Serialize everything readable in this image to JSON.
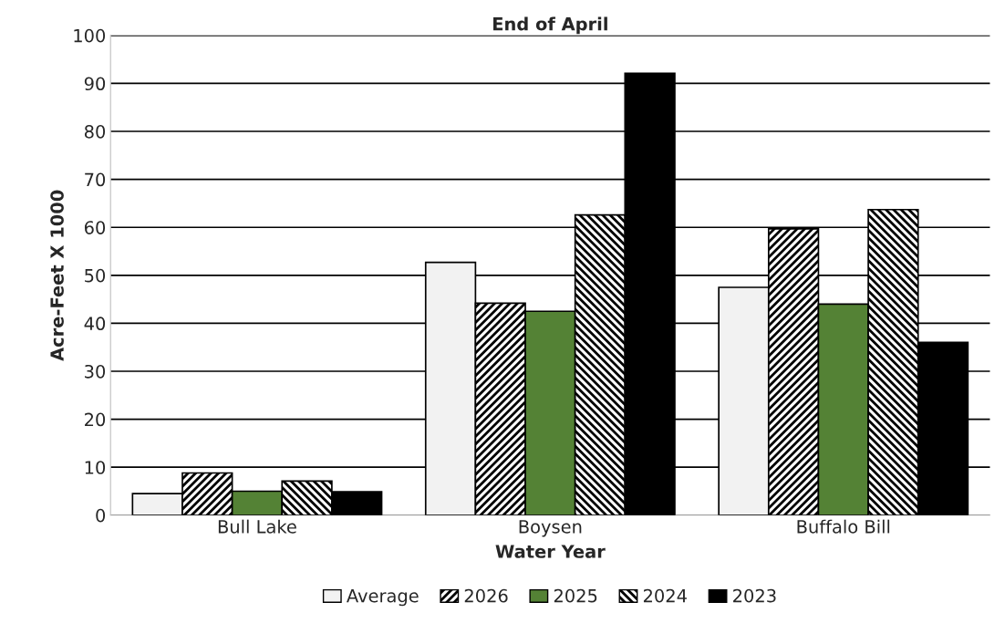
{
  "chart_data": {
    "type": "bar",
    "title": "End of April",
    "xlabel": "Water Year",
    "ylabel": "Acre-Feet X 1000",
    "categories": [
      "Bull Lake",
      "Boysen",
      "Buffalo Bill"
    ],
    "series": [
      {
        "name": "Average",
        "color": "#f2f2f2",
        "values": [
          4.5,
          52.7,
          47.5
        ]
      },
      {
        "name": "2026",
        "color": "#000000",
        "values": [
          8.8,
          44.2,
          59.7
        ]
      },
      {
        "name": "2025",
        "color": "#548235",
        "values": [
          5.0,
          42.5,
          44.0
        ]
      },
      {
        "name": "2024",
        "color": "#000000",
        "values": [
          7.1,
          62.6,
          63.7
        ]
      },
      {
        "name": "2023",
        "color": "#000000",
        "values": [
          4.9,
          92.1,
          36.0
        ]
      }
    ],
    "ylim": [
      0,
      100
    ],
    "yticks": [
      0,
      10,
      20,
      30,
      40,
      50,
      60,
      70,
      80,
      90,
      100
    ],
    "grid": "y",
    "legend": "bottom"
  }
}
